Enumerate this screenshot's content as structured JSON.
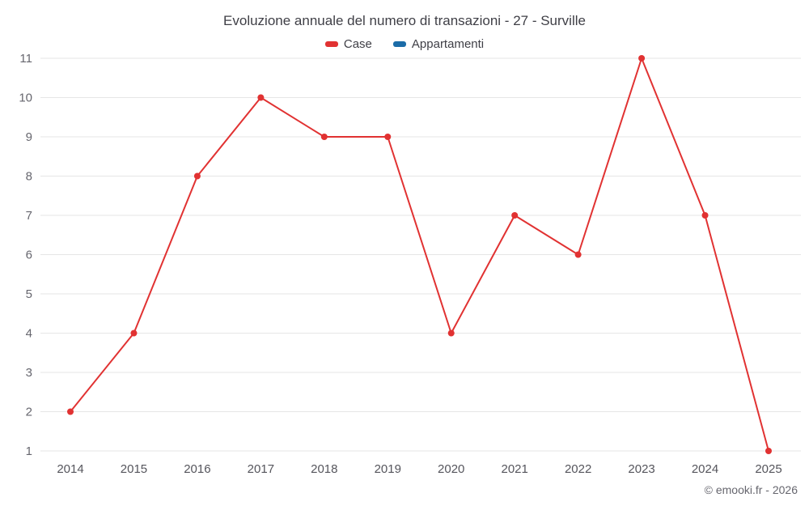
{
  "chart": {
    "footer": "© emooki.fr - 2026"
  },
  "legend": {
    "items": [
      {
        "label": "Case",
        "color": "#e13232"
      },
      {
        "label": "Appartamenti",
        "color": "#1b6ca8"
      }
    ]
  },
  "chart_data": {
    "type": "line",
    "title": "Evoluzione annuale del numero di transazioni - 27 - Surville",
    "categories": [
      "2014",
      "2015",
      "2016",
      "2017",
      "2018",
      "2019",
      "2020",
      "2021",
      "2022",
      "2023",
      "2024",
      "2025"
    ],
    "series": [
      {
        "name": "Case",
        "color": "#e13232",
        "values": [
          2,
          4,
          8,
          10,
          9,
          9,
          4,
          7,
          6,
          11,
          7,
          1
        ]
      },
      {
        "name": "Appartamenti",
        "color": "#1b6ca8",
        "values": []
      }
    ],
    "xlabel": "",
    "ylabel": "",
    "ylim": [
      1,
      11
    ],
    "yticks": [
      1,
      2,
      3,
      4,
      5,
      6,
      7,
      8,
      9,
      10,
      11
    ],
    "grid": "horizontal",
    "legend_position": "top"
  }
}
